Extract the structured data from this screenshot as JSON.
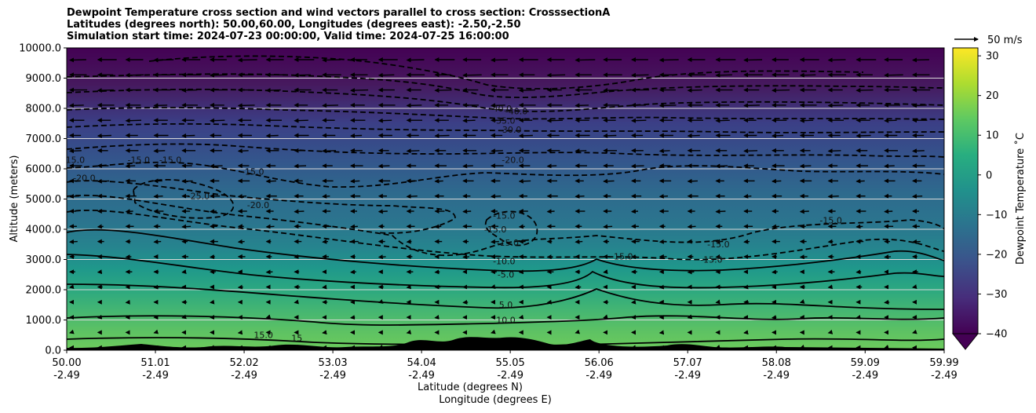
{
  "chart_data": {
    "type": "filled-contour-cross-section",
    "title_lines": [
      "Dewpoint Temperature cross section and wind vectors parallel to cross section: CrosssectionA",
      "Latitudes (degrees north): 50.00,60.00, Longitudes (degrees east): -2.50,-2.50",
      "Simulation start time: 2024-07-23 00:00:00, Valid time: 2024-07-25 16:00:00"
    ],
    "ylabel": "Altitude (meters)",
    "xlabel_lat": "Latitude (degrees N)",
    "xlabel_lon": "Longitude (degrees E)",
    "ylim": [
      0,
      10000
    ],
    "yticks": [
      "0.0",
      "1000.0",
      "2000.0",
      "3000.0",
      "4000.0",
      "5000.0",
      "6000.0",
      "7000.0",
      "8000.0",
      "9000.0",
      "10000.0"
    ],
    "ytick_values": [
      0,
      1000,
      2000,
      3000,
      4000,
      5000,
      6000,
      7000,
      8000,
      9000,
      10000
    ],
    "xlim": [
      50.0,
      59.99
    ],
    "xticks_lat": [
      "50.00",
      "51.01",
      "52.02",
      "53.03",
      "54.04",
      "55.05",
      "56.06",
      "57.07",
      "58.08",
      "59.09",
      "59.99"
    ],
    "xtick_values": [
      50.0,
      51.01,
      52.02,
      53.03,
      54.04,
      55.05,
      56.06,
      57.07,
      58.08,
      59.09,
      59.99
    ],
    "xticks_lon": [
      "-2.49",
      "-2.49",
      "-2.49",
      "-2.49",
      "-2.49",
      "-2.49",
      "-2.49",
      "-2.49",
      "-2.49",
      "-2.49",
      "-2.49"
    ],
    "grid_horizontal": true,
    "colorbar": {
      "label": "Dewpoint Temperature ˚C",
      "min": -40,
      "max": 32,
      "ticks": [
        "30",
        "20",
        "10",
        "0",
        "−10",
        "−20",
        "−30",
        "−40"
      ],
      "tick_values": [
        30,
        20,
        10,
        0,
        -10,
        -20,
        -30,
        -40
      ],
      "extend": "min",
      "colormap": "viridis"
    },
    "quiver_key_label": "50 m/s",
    "contour_labels": [
      {
        "text": "-40.0",
        "x": 54.94,
        "y": 7900
      },
      {
        "text": "-40.0",
        "x": 55.12,
        "y": 7800
      },
      {
        "text": "-35.0",
        "x": 54.98,
        "y": 7500
      },
      {
        "text": "-30.0",
        "x": 55.05,
        "y": 7200
      },
      {
        "text": "-20.0",
        "x": 55.08,
        "y": 6200
      },
      {
        "text": "-20.0",
        "x": 50.2,
        "y": 5600
      },
      {
        "text": "-15.0",
        "x": 50.08,
        "y": 6200
      },
      {
        "text": "-15.0",
        "x": 50.82,
        "y": 6200
      },
      {
        "text": "-15.0",
        "x": 51.18,
        "y": 6200
      },
      {
        "text": "-15.0",
        "x": 52.12,
        "y": 5800
      },
      {
        "text": "-25.0",
        "x": 51.5,
        "y": 5000
      },
      {
        "text": "-20.0",
        "x": 52.18,
        "y": 4700
      },
      {
        "text": "-15.0",
        "x": 54.98,
        "y": 4350
      },
      {
        "text": "-15.0",
        "x": 54.88,
        "y": 3900
      },
      {
        "text": "-15.0",
        "x": 55.02,
        "y": 3450
      },
      {
        "text": "-10.0",
        "x": 54.98,
        "y": 2850
      },
      {
        "text": "-5.0",
        "x": 55.0,
        "y": 2400
      },
      {
        "text": "-15.0",
        "x": 56.32,
        "y": 3000
      },
      {
        "text": "-15.0",
        "x": 57.34,
        "y": 2900
      },
      {
        "text": "-15.0",
        "x": 57.42,
        "y": 3400
      },
      {
        "text": "-15.0",
        "x": 58.7,
        "y": 4200
      },
      {
        "text": "5.0",
        "x": 55.0,
        "y": 1400
      },
      {
        "text": "10.0",
        "x": 55.0,
        "y": 900
      },
      {
        "text": "15.0",
        "x": 52.24,
        "y": 400
      },
      {
        "text": "15",
        "x": 52.62,
        "y": 300
      }
    ]
  }
}
